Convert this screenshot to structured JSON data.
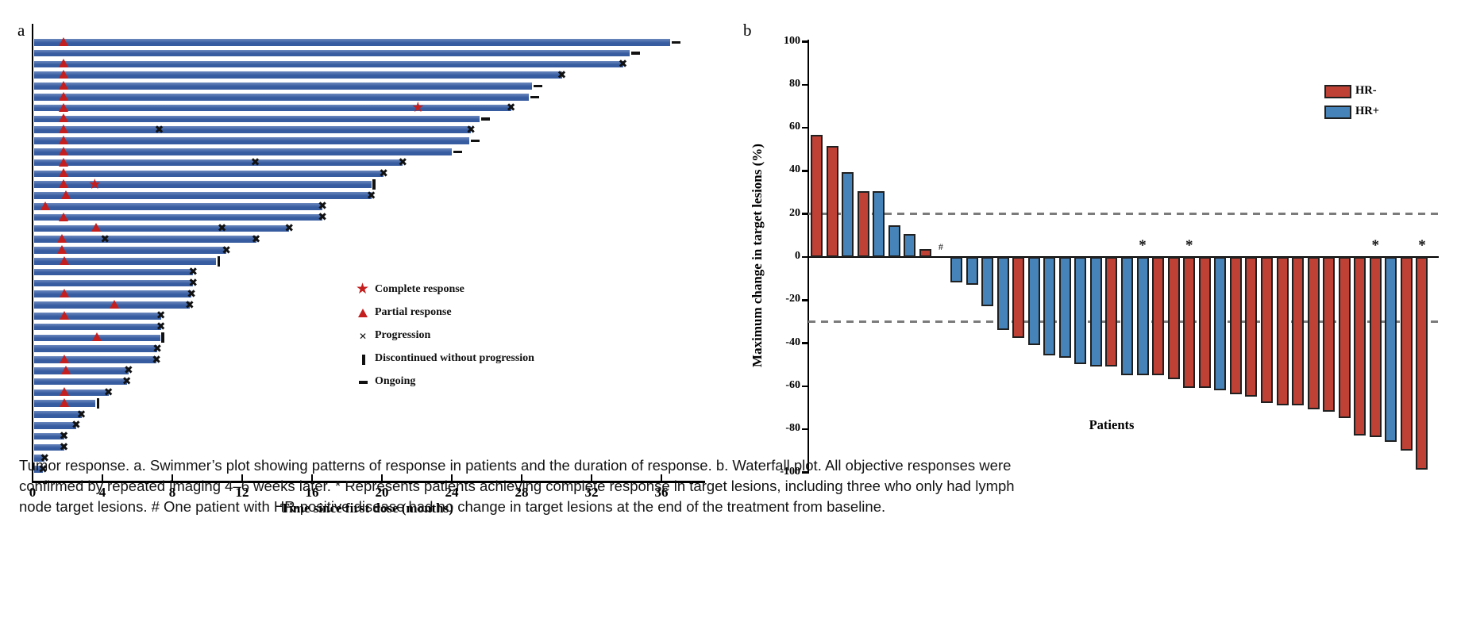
{
  "caption": {
    "lines": [
      "Tumor response. a. Swimmer’s plot showing patterns of response in patients and the duration of response. b. Waterfall plot. All objective responses were",
      "confirmed by repeated imaging 4–6 weeks later. * Represents patients achieving complete response in target lesions, including three who only had lymph",
      "node target lesions. # One patient with HR-positive disease had no change in target lesions at the end of the treatment from baseline."
    ]
  },
  "colors": {
    "swimmer_bar": "#375ca0",
    "response_red": "#c41e1e",
    "marker_black": "#111111",
    "hr_neg": "#bf4136",
    "hr_pos": "#4583b9",
    "bar_outline": "#202020",
    "dashed_line": "#7b7b7b",
    "axis": "#000000"
  },
  "chart_data": [
    {
      "type": "bar",
      "subtype": "swimmer",
      "panel_label": "a",
      "xlabel": "Time since first dose (months)",
      "xlim": [
        0,
        38.5
      ],
      "xticks": [
        0,
        4,
        8,
        12,
        16,
        20,
        24,
        28,
        32,
        36
      ],
      "legend": [
        {
          "symbol": "star",
          "label": "Complete response"
        },
        {
          "symbol": "triangle",
          "label": "Partial response"
        },
        {
          "symbol": "x",
          "label": "Progression"
        },
        {
          "symbol": "bar",
          "label": "Discontinued without progression"
        },
        {
          "symbol": "dash",
          "label": "Ongoing"
        }
      ],
      "bars": [
        {
          "duration_months": 36.5,
          "end": "ongoing",
          "partial_response_at": 1.75
        },
        {
          "duration_months": 34.2,
          "end": "ongoing"
        },
        {
          "duration_months": 33.8,
          "end": "progression",
          "partial_response_at": 1.75
        },
        {
          "duration_months": 30.3,
          "end": "progression",
          "partial_response_at": 1.75
        },
        {
          "duration_months": 28.6,
          "end": "ongoing",
          "partial_response_at": 1.75
        },
        {
          "duration_months": 28.4,
          "end": "ongoing",
          "partial_response_at": 1.75
        },
        {
          "duration_months": 27.4,
          "end": "progression",
          "partial_response_at": 1.75,
          "complete_response_at": 22.1
        },
        {
          "duration_months": 25.6,
          "end": "ongoing",
          "partial_response_at": 1.75
        },
        {
          "duration_months": 25.1,
          "end": "progression",
          "partial_response_at": 1.75,
          "progression_marks": [
            7.3
          ]
        },
        {
          "duration_months": 25.0,
          "end": "ongoing",
          "partial_response_at": 1.75
        },
        {
          "duration_months": 24.0,
          "end": "ongoing",
          "partial_response_at": 1.75
        },
        {
          "duration_months": 21.2,
          "end": "progression",
          "partial_response_at": 1.75,
          "progression_marks": [
            12.8
          ]
        },
        {
          "duration_months": 20.1,
          "end": "progression",
          "partial_response_at": 1.75
        },
        {
          "duration_months": 19.4,
          "end": "discontinued",
          "partial_response_at": 1.75,
          "complete_response_at": 3.6
        },
        {
          "duration_months": 19.4,
          "end": "progression",
          "partial_response_at": 1.9
        },
        {
          "duration_months": 16.6,
          "end": "progression",
          "partial_response_at": 0.73
        },
        {
          "duration_months": 16.6,
          "end": "progression",
          "partial_response_at": 1.75
        },
        {
          "duration_months": 14.7,
          "end": "progression",
          "partial_response_at": 3.65,
          "progression_marks": [
            10.9
          ]
        },
        {
          "duration_months": 12.8,
          "end": "progression",
          "partial_response_at": 1.7,
          "progression_marks": [
            4.2
          ]
        },
        {
          "duration_months": 11.1,
          "end": "progression",
          "partial_response_at": 1.7
        },
        {
          "duration_months": 10.5,
          "end": "discontinued",
          "partial_response_at": 1.8
        },
        {
          "duration_months": 9.2,
          "end": "progression"
        },
        {
          "duration_months": 9.2,
          "end": "progression"
        },
        {
          "duration_months": 9.1,
          "end": "progression",
          "partial_response_at": 1.8
        },
        {
          "duration_months": 9.0,
          "end": "progression",
          "partial_response_at": 4.7
        },
        {
          "duration_months": 7.35,
          "end": "progression",
          "partial_response_at": 1.8
        },
        {
          "duration_months": 7.35,
          "end": "progression"
        },
        {
          "duration_months": 7.3,
          "end": "discontinued",
          "partial_response_at": 3.7
        },
        {
          "duration_months": 7.15,
          "end": "progression"
        },
        {
          "duration_months": 7.1,
          "end": "progression",
          "partial_response_at": 1.8
        },
        {
          "duration_months": 5.5,
          "end": "progression",
          "partial_response_at": 1.9
        },
        {
          "duration_months": 5.4,
          "end": "progression"
        },
        {
          "duration_months": 4.35,
          "end": "progression",
          "partial_response_at": 1.8
        },
        {
          "duration_months": 3.6,
          "end": "discontinued",
          "partial_response_at": 1.8
        },
        {
          "duration_months": 2.8,
          "end": "progression"
        },
        {
          "duration_months": 2.5,
          "end": "progression"
        },
        {
          "duration_months": 1.8,
          "end": "progression"
        },
        {
          "duration_months": 1.8,
          "end": "progression"
        },
        {
          "duration_months": 0.7,
          "end": "progression"
        },
        {
          "duration_months": 0.6,
          "end": "progression"
        }
      ]
    },
    {
      "type": "bar",
      "subtype": "waterfall",
      "panel_label": "b",
      "ylabel": "Maximum change in target lesions (%)",
      "xlabel": "Patients",
      "ylim": [
        -100,
        100
      ],
      "yticks": [
        100,
        80,
        60,
        40,
        20,
        0,
        -20,
        -40,
        -60,
        -80,
        -100
      ],
      "reference_lines": [
        20,
        -30
      ],
      "legend": [
        {
          "label": "HR-",
          "color_key": "hr_neg"
        },
        {
          "label": "HR+",
          "color_key": "hr_pos"
        }
      ],
      "patients": [
        {
          "value": 56,
          "group": "HR-"
        },
        {
          "value": 51,
          "group": "HR-"
        },
        {
          "value": 39,
          "group": "HR+"
        },
        {
          "value": 30,
          "group": "HR-"
        },
        {
          "value": 30,
          "group": "HR+"
        },
        {
          "value": 14,
          "group": "HR+"
        },
        {
          "value": 10,
          "group": "HR+"
        },
        {
          "value": 3,
          "group": "HR-"
        },
        {
          "value": 0,
          "group": "HR+",
          "mark": "#"
        },
        {
          "value": -11,
          "group": "HR+"
        },
        {
          "value": -12,
          "group": "HR+"
        },
        {
          "value": -22,
          "group": "HR+"
        },
        {
          "value": -33,
          "group": "HR+"
        },
        {
          "value": -37,
          "group": "HR-"
        },
        {
          "value": -40,
          "group": "HR+"
        },
        {
          "value": -45,
          "group": "HR+"
        },
        {
          "value": -46,
          "group": "HR+"
        },
        {
          "value": -49,
          "group": "HR+"
        },
        {
          "value": -50,
          "group": "HR+"
        },
        {
          "value": -50,
          "group": "HR-"
        },
        {
          "value": -54,
          "group": "HR+"
        },
        {
          "value": -54,
          "group": "HR+",
          "mark": "*"
        },
        {
          "value": -54,
          "group": "HR-"
        },
        {
          "value": -56,
          "group": "HR-"
        },
        {
          "value": -60,
          "group": "HR-",
          "mark": "*"
        },
        {
          "value": -60,
          "group": "HR-"
        },
        {
          "value": -61,
          "group": "HR+"
        },
        {
          "value": -63,
          "group": "HR-"
        },
        {
          "value": -64,
          "group": "HR-"
        },
        {
          "value": -67,
          "group": "HR-"
        },
        {
          "value": -68,
          "group": "HR-"
        },
        {
          "value": -68,
          "group": "HR-"
        },
        {
          "value": -70,
          "group": "HR-"
        },
        {
          "value": -71,
          "group": "HR-"
        },
        {
          "value": -74,
          "group": "HR-"
        },
        {
          "value": -82,
          "group": "HR-"
        },
        {
          "value": -83,
          "group": "HR-",
          "mark": "*"
        },
        {
          "value": -85,
          "group": "HR+"
        },
        {
          "value": -89,
          "group": "HR-"
        },
        {
          "value": -98,
          "group": "HR-",
          "mark": "*"
        }
      ]
    }
  ]
}
